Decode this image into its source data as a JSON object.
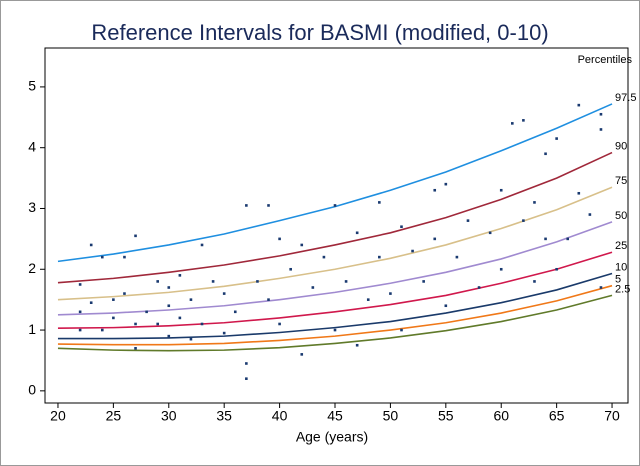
{
  "chart_data": {
    "type": "line",
    "title": "Reference Intervals for BASMI (modified, 0-10)",
    "x_label": "Age (years)",
    "legend_title": "Percentiles",
    "x": [
      20,
      25,
      30,
      35,
      40,
      45,
      50,
      55,
      60,
      65,
      70
    ],
    "series": [
      {
        "name": "97.5",
        "color": "#1f8fe0",
        "values": [
          2.13,
          2.25,
          2.4,
          2.58,
          2.8,
          3.03,
          3.3,
          3.6,
          3.95,
          4.32,
          4.72
        ]
      },
      {
        "name": "90",
        "color": "#a0283a",
        "values": [
          1.78,
          1.85,
          1.95,
          2.07,
          2.22,
          2.4,
          2.6,
          2.85,
          3.15,
          3.5,
          3.92
        ]
      },
      {
        "name": "75",
        "color": "#d8c08a",
        "values": [
          1.5,
          1.55,
          1.62,
          1.72,
          1.85,
          2.0,
          2.18,
          2.4,
          2.67,
          2.98,
          3.35
        ]
      },
      {
        "name": "50",
        "color": "#a08ad0",
        "values": [
          1.25,
          1.28,
          1.33,
          1.4,
          1.5,
          1.62,
          1.77,
          1.95,
          2.17,
          2.45,
          2.78
        ]
      },
      {
        "name": "25",
        "color": "#d0184c",
        "values": [
          1.03,
          1.04,
          1.07,
          1.12,
          1.2,
          1.3,
          1.42,
          1.57,
          1.77,
          2.0,
          2.28
        ]
      },
      {
        "name": "10",
        "color": "#1a3a6a",
        "values": [
          0.86,
          0.86,
          0.87,
          0.9,
          0.96,
          1.04,
          1.14,
          1.28,
          1.45,
          1.66,
          1.93
        ]
      },
      {
        "name": "5",
        "color": "#f07818",
        "values": [
          0.77,
          0.76,
          0.76,
          0.78,
          0.83,
          0.9,
          1.0,
          1.12,
          1.28,
          1.48,
          1.73
        ]
      },
      {
        "name": "2.5",
        "color": "#607a2a",
        "values": [
          0.7,
          0.67,
          0.66,
          0.67,
          0.71,
          0.78,
          0.87,
          0.99,
          1.14,
          1.33,
          1.57
        ]
      }
    ],
    "scatter": {
      "color": "#1a3a70",
      "x": [
        22,
        22,
        22,
        23,
        23,
        24,
        24,
        25,
        25,
        26,
        26,
        27,
        27,
        27,
        28,
        29,
        29,
        30,
        30,
        30,
        31,
        31,
        32,
        32,
        33,
        33,
        34,
        35,
        35,
        36,
        37,
        37,
        37,
        38,
        39,
        39,
        40,
        40,
        41,
        42,
        42,
        43,
        44,
        45,
        45,
        46,
        47,
        47,
        48,
        49,
        49,
        50,
        51,
        51,
        52,
        53,
        54,
        54,
        55,
        55,
        56,
        57,
        58,
        59,
        60,
        60,
        61,
        62,
        62,
        63,
        63,
        64,
        64,
        65,
        65,
        66,
        67,
        67,
        68,
        69,
        69,
        69
      ],
      "y": [
        1.0,
        1.3,
        1.75,
        2.4,
        1.45,
        2.2,
        1.0,
        1.5,
        1.2,
        1.6,
        2.2,
        2.55,
        1.1,
        0.7,
        1.3,
        1.8,
        1.1,
        1.7,
        0.9,
        1.4,
        1.9,
        1.2,
        1.5,
        0.85,
        2.4,
        1.1,
        1.8,
        1.6,
        0.95,
        1.3,
        3.05,
        0.2,
        0.45,
        1.8,
        3.05,
        1.5,
        2.5,
        1.1,
        2.0,
        2.4,
        0.6,
        1.7,
        2.2,
        1.0,
        3.05,
        1.8,
        2.6,
        0.75,
        1.5,
        3.1,
        2.2,
        1.6,
        2.7,
        1.0,
        2.3,
        1.8,
        3.3,
        2.5,
        3.4,
        1.4,
        2.2,
        2.8,
        1.7,
        2.6,
        3.3,
        2.0,
        4.4,
        4.45,
        2.8,
        3.1,
        1.8,
        3.9,
        2.5,
        4.15,
        2.0,
        2.5,
        4.7,
        3.25,
        2.9,
        4.3,
        4.55,
        1.7
      ]
    },
    "xlim": [
      18.83,
      71.44
    ],
    "ylim": [
      -0.2,
      5.64
    ],
    "xticks": [
      20,
      25,
      30,
      35,
      40,
      45,
      50,
      55,
      60,
      65,
      70
    ],
    "yticks": [
      0,
      1,
      2,
      3,
      4,
      5
    ]
  }
}
